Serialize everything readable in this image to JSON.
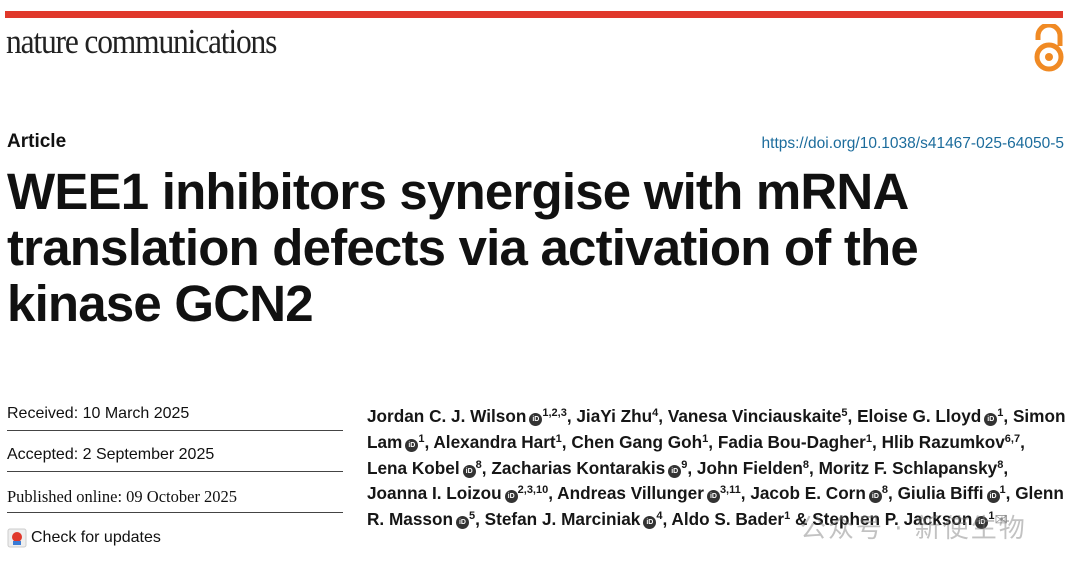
{
  "journal": {
    "name": "nature communications",
    "accent_color": "#e0382b",
    "open_access_icon": "open-access-icon",
    "open_access_color": "#f08a24"
  },
  "article_type": "Article",
  "doi": "https://doi.org/10.1038/s41467-025-64050-5",
  "title": "WEE1 inhibitors synergise with mRNA translation defects via activation of the kinase GCN2",
  "dates": {
    "received": "Received: 10 March 2025",
    "accepted": "Accepted: 2 September 2025",
    "published": "Published online: 09 October 2025"
  },
  "check_updates": "Check for updates",
  "authors": [
    {
      "name": "Jordan C. J. Wilson",
      "orcid": true,
      "sup": "1,2,3",
      "sep": ", "
    },
    {
      "name": "JiaYi Zhu",
      "orcid": false,
      "sup": "4",
      "sep": ", "
    },
    {
      "name": "Vanesa Vinciauskaite",
      "orcid": false,
      "sup": "5",
      "sep": ", "
    },
    {
      "name": "Eloise G. Lloyd",
      "orcid": true,
      "sup": "1",
      "sep": ", "
    },
    {
      "name": "Simon Lam",
      "orcid": true,
      "sup": "1",
      "sep": ", "
    },
    {
      "name": "Alexandra Hart",
      "orcid": false,
      "sup": "1",
      "sep": ", "
    },
    {
      "name": "Chen Gang Goh",
      "orcid": false,
      "sup": "1",
      "sep": ", "
    },
    {
      "name": "Fadia Bou-Dagher",
      "orcid": false,
      "sup": "1",
      "sep": ", "
    },
    {
      "name": "Hlib Razumkov",
      "orcid": false,
      "sup": "6,7",
      "sep": ", "
    },
    {
      "name": "Lena Kobel",
      "orcid": true,
      "sup": "8",
      "sep": ", "
    },
    {
      "name": "Zacharias Kontarakis",
      "orcid": true,
      "sup": "9",
      "sep": ", "
    },
    {
      "name": "John Fielden",
      "orcid": false,
      "sup": "8",
      "sep": ", "
    },
    {
      "name": "Moritz F. Schlapansky",
      "orcid": false,
      "sup": "8",
      "sep": ", "
    },
    {
      "name": "Joanna I. Loizou",
      "orcid": true,
      "sup": "2,3,10",
      "sep": ", "
    },
    {
      "name": "Andreas Villunger",
      "orcid": true,
      "sup": "3,11",
      "sep": ", "
    },
    {
      "name": "Jacob E. Corn",
      "orcid": true,
      "sup": "8",
      "sep": ", "
    },
    {
      "name": "Giulia Biffi",
      "orcid": true,
      "sup": "1",
      "sep": ", "
    },
    {
      "name": "Glenn R. Masson",
      "orcid": true,
      "sup": "5",
      "sep": ", "
    },
    {
      "name": "Stefan J. Marciniak",
      "orcid": true,
      "sup": "4",
      "sep": ", "
    },
    {
      "name": "Aldo S. Bader",
      "orcid": false,
      "sup": "1",
      "sep": " & "
    },
    {
      "name": "Stephen P. Jackson",
      "orcid": true,
      "sup": "1",
      "sep": "",
      "mail": true
    }
  ],
  "orcid_label": "iD",
  "mail_icon": "✉",
  "watermark": "公众号 · 新使生物"
}
